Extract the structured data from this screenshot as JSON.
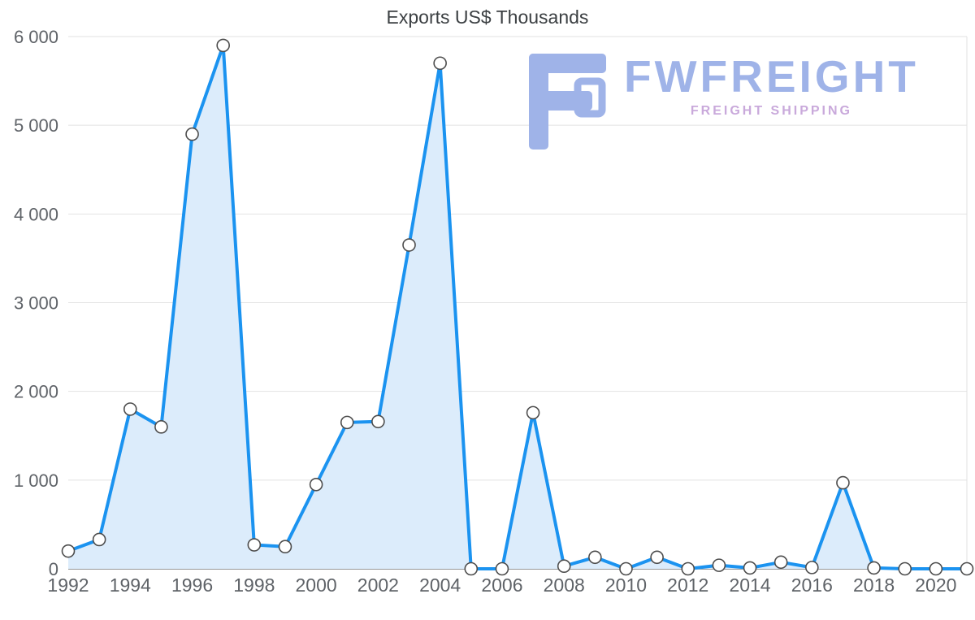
{
  "title": "Exports US$ Thousands",
  "logo": {
    "name": "FWFREIGHT",
    "tagline": "FREIGHT SHIPPING"
  },
  "colors": {
    "line": "#1b93f0",
    "area_fill": "#dcecfb",
    "marker_fill": "#ffffff",
    "marker_stroke": "#4d4d4d",
    "grid": "#e2e2e2",
    "axis_line": "#757575",
    "axis_text": "#5f6368",
    "title_text": "#3c4043",
    "logo_main": "#9fb3e8",
    "logo_tagline": "#c9a9db"
  },
  "chart_data": {
    "type": "area",
    "title": "Exports US$ Thousands",
    "x": [
      1992,
      1993,
      1994,
      1995,
      1996,
      1997,
      1998,
      1999,
      2000,
      2001,
      2002,
      2003,
      2004,
      2005,
      2006,
      2007,
      2008,
      2009,
      2010,
      2011,
      2012,
      2013,
      2014,
      2015,
      2016,
      2017,
      2018,
      2019,
      2020,
      2021
    ],
    "values": [
      200,
      330,
      1800,
      1600,
      4900,
      5900,
      270,
      250,
      950,
      1650,
      1660,
      3650,
      5700,
      0,
      0,
      1760,
      30,
      130,
      0,
      130,
      0,
      40,
      10,
      75,
      15,
      970,
      10,
      0,
      0,
      0
    ],
    "xtick_labels": [
      "1992",
      "1994",
      "1996",
      "1998",
      "2000",
      "2002",
      "2004",
      "2006",
      "2008",
      "2010",
      "2012",
      "2014",
      "2016",
      "2018",
      "2020"
    ],
    "ytick_values": [
      0,
      1000,
      2000,
      3000,
      4000,
      5000,
      6000
    ],
    "ytick_labels": [
      "0",
      "1 000",
      "2 000",
      "3 000",
      "4 000",
      "5 000",
      "6 000"
    ],
    "ylim": [
      0,
      6000
    ],
    "grid": "horizontal",
    "legend": "none",
    "xlabel": "",
    "ylabel": ""
  }
}
